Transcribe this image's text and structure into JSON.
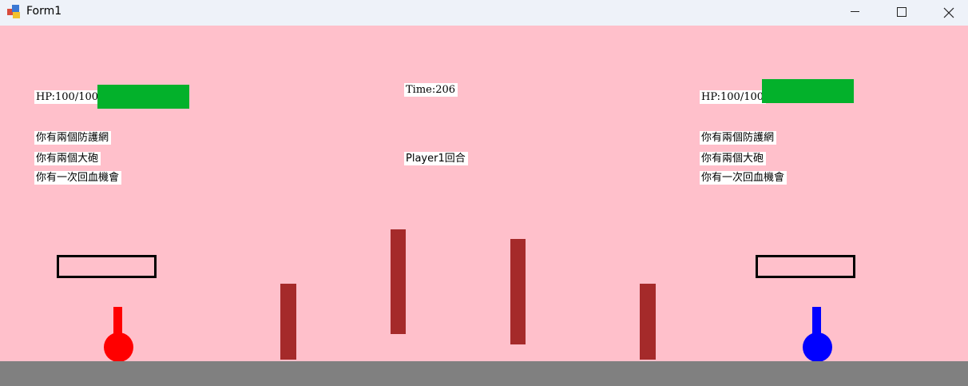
{
  "window": {
    "title": "Form1",
    "controls": {
      "minimize": "minimize-icon",
      "maximize": "maximize-icon",
      "close": "close-icon"
    }
  },
  "colors": {
    "background": "#ffc0cb",
    "hp_bar": "#03b12b",
    "wall": "#a52a2a",
    "player1": "#ff0000",
    "player2": "#0000ff",
    "ground": "#808080"
  },
  "hud": {
    "timer": "Time:206",
    "turn": "Player1回合"
  },
  "player1": {
    "hp_text": "HP:100/100",
    "hp_fraction": 1.0,
    "shields": "你有兩個防護網",
    "cannons": "你有兩個大砲",
    "heals": "你有一次回血機會"
  },
  "player2": {
    "hp_text": "HP:100/100",
    "hp_fraction": 1.0,
    "shields": "你有兩個防護網",
    "cannons": "你有兩個大砲",
    "heals": "你有一次回血機會"
  }
}
